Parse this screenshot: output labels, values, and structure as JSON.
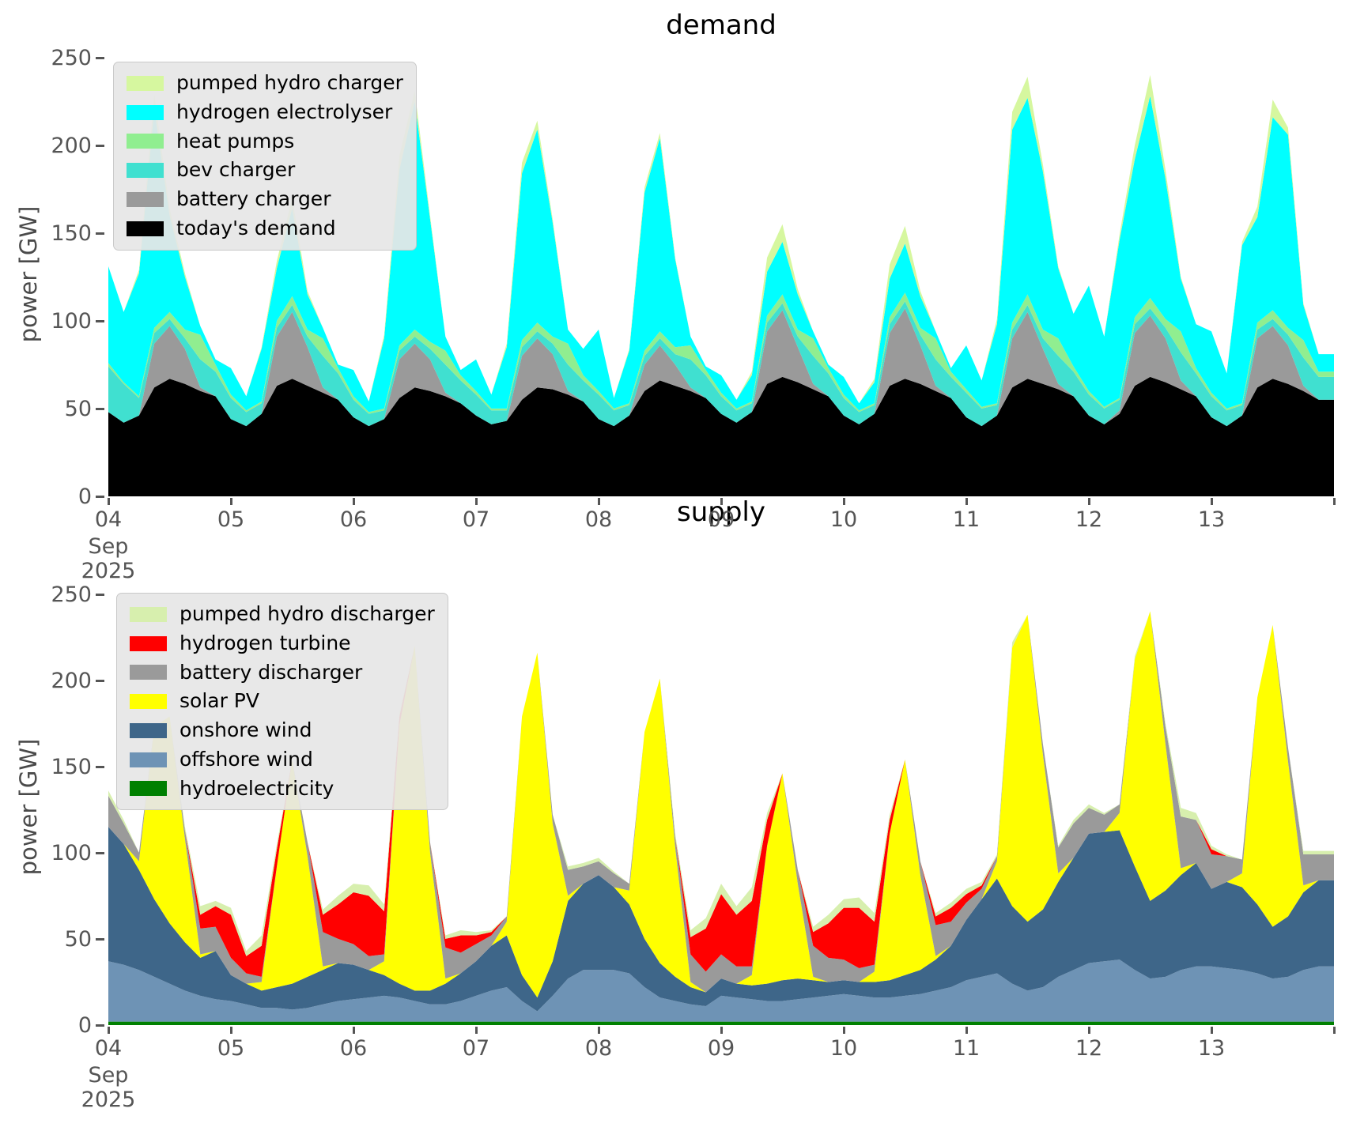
{
  "chart_data": [
    {
      "id": "demand",
      "type": "area",
      "title": "demand",
      "ylabel": "power [GW]",
      "legend_position": "upper left",
      "grid": false,
      "x_axis": {
        "month": "Sep",
        "year": "2025",
        "tick_labels": [
          "04",
          "05",
          "06",
          "07",
          "08",
          "09",
          "10",
          "11",
          "12",
          "13"
        ],
        "days": 10,
        "samples_per_day": 8
      },
      "y_axis": {
        "ticks": [
          0,
          50,
          100,
          150,
          200,
          250
        ],
        "max": 253,
        "unit": "GW"
      },
      "series": [
        {
          "name": "today's demand",
          "color": "#000000",
          "values": [
            48,
            42,
            46,
            62,
            67,
            64,
            60,
            57,
            44,
            40,
            47,
            63,
            67,
            63,
            59,
            55,
            45,
            40,
            44,
            56,
            62,
            60,
            57,
            53,
            46,
            41,
            43,
            55,
            62,
            61,
            58,
            54,
            44,
            40,
            46,
            60,
            66,
            63,
            60,
            56,
            47,
            42,
            48,
            64,
            68,
            65,
            61,
            57,
            46,
            41,
            47,
            63,
            67,
            64,
            60,
            56,
            45,
            40,
            46,
            62,
            67,
            64,
            61,
            57,
            46,
            41,
            47,
            63,
            68,
            65,
            61,
            57,
            45,
            40,
            46,
            62,
            67,
            64,
            60,
            55
          ]
        },
        {
          "name": "battery charger",
          "color": "#9a9a9a",
          "values": [
            0,
            0,
            0,
            25,
            30,
            20,
            2,
            0,
            0,
            0,
            0,
            28,
            38,
            22,
            3,
            0,
            0,
            0,
            0,
            22,
            25,
            18,
            2,
            0,
            0,
            0,
            0,
            25,
            28,
            20,
            2,
            0,
            0,
            0,
            0,
            15,
            20,
            12,
            2,
            0,
            0,
            0,
            0,
            30,
            38,
            20,
            3,
            0,
            0,
            0,
            0,
            30,
            40,
            22,
            3,
            0,
            0,
            0,
            0,
            28,
            38,
            20,
            3,
            0,
            0,
            0,
            2,
            30,
            35,
            25,
            5,
            0,
            0,
            0,
            0,
            28,
            30,
            22,
            3,
            0
          ]
        },
        {
          "name": "bev charger",
          "color": "#40e0d0",
          "values": [
            26,
            22,
            10,
            6,
            4,
            6,
            16,
            14,
            12,
            8,
            6,
            5,
            4,
            6,
            18,
            15,
            10,
            7,
            5,
            5,
            4,
            6,
            16,
            13,
            12,
            8,
            6,
            5,
            4,
            6,
            15,
            12,
            14,
            9,
            6,
            5,
            4,
            6,
            16,
            13,
            10,
            7,
            5,
            5,
            4,
            6,
            16,
            13,
            10,
            7,
            5,
            5,
            4,
            6,
            15,
            12,
            14,
            10,
            6,
            5,
            4,
            6,
            16,
            14,
            12,
            9,
            6,
            5,
            4,
            6,
            16,
            13,
            12,
            9,
            6,
            5,
            4,
            6,
            16,
            13
          ]
        },
        {
          "name": "heat pumps",
          "color": "#90ee90",
          "values": [
            2,
            1,
            1,
            3,
            4,
            5,
            14,
            4,
            2,
            1,
            1,
            4,
            5,
            4,
            10,
            3,
            2,
            1,
            1,
            3,
            4,
            4,
            8,
            3,
            2,
            1,
            1,
            4,
            5,
            4,
            12,
            3,
            2,
            1,
            1,
            3,
            4,
            4,
            8,
            3,
            2,
            1,
            1,
            4,
            5,
            4,
            10,
            3,
            2,
            1,
            1,
            4,
            5,
            4,
            12,
            3,
            2,
            1,
            1,
            4,
            6,
            5,
            10,
            3,
            2,
            1,
            1,
            4,
            6,
            5,
            12,
            3,
            2,
            1,
            1,
            4,
            5,
            4,
            10,
            3
          ]
        },
        {
          "name": "hydrogen electrolyser",
          "color": "#00ffff",
          "values": [
            55,
            40,
            70,
            125,
            55,
            30,
            5,
            3,
            15,
            8,
            30,
            30,
            50,
            20,
            6,
            2,
            15,
            6,
            40,
            100,
            130,
            70,
            8,
            3,
            18,
            8,
            35,
            95,
            110,
            65,
            8,
            15,
            35,
            6,
            30,
            90,
            110,
            50,
            5,
            2,
            10,
            5,
            15,
            25,
            30,
            20,
            4,
            2,
            10,
            4,
            12,
            22,
            28,
            18,
            4,
            2,
            25,
            15,
            45,
            110,
            112,
            90,
            40,
            30,
            60,
            40,
            90,
            90,
            115,
            80,
            30,
            25,
            35,
            20,
            90,
            60,
            110,
            110,
            20,
            10
          ]
        },
        {
          "name": "pumped hydro charger",
          "color": "#d6f79f",
          "values": [
            0,
            0,
            2,
            8,
            4,
            2,
            0,
            0,
            0,
            0,
            1,
            4,
            6,
            2,
            0,
            0,
            0,
            0,
            2,
            8,
            6,
            2,
            0,
            0,
            0,
            0,
            2,
            6,
            5,
            2,
            0,
            0,
            0,
            0,
            1,
            3,
            3,
            1,
            0,
            0,
            0,
            0,
            2,
            8,
            10,
            3,
            0,
            0,
            0,
            0,
            2,
            8,
            10,
            3,
            0,
            0,
            0,
            0,
            3,
            10,
            12,
            4,
            1,
            0,
            0,
            0,
            3,
            8,
            12,
            5,
            1,
            0,
            0,
            0,
            2,
            6,
            10,
            4,
            1,
            0
          ]
        }
      ]
    },
    {
      "id": "supply",
      "type": "area",
      "title": "supply",
      "ylabel": "power [GW]",
      "legend_position": "upper left",
      "grid": false,
      "x_axis": {
        "month": "Sep",
        "year": "2025",
        "tick_labels": [
          "04",
          "05",
          "06",
          "07",
          "08",
          "09",
          "10",
          "11",
          "12",
          "13"
        ],
        "days": 10,
        "samples_per_day": 8
      },
      "y_axis": {
        "ticks": [
          0,
          50,
          100,
          150,
          200,
          250
        ],
        "max": 253,
        "unit": "GW"
      },
      "series": [
        {
          "name": "hydroelectricity",
          "color": "#008000",
          "values": [
            2,
            2,
            2,
            2,
            2,
            2,
            2,
            2,
            2,
            2,
            2,
            2,
            2,
            2,
            2,
            2,
            2,
            2,
            2,
            2,
            2,
            2,
            2,
            2,
            2,
            2,
            2,
            2,
            2,
            2,
            2,
            2,
            2,
            2,
            2,
            2,
            2,
            2,
            2,
            2,
            2,
            2,
            2,
            2,
            2,
            2,
            2,
            2,
            2,
            2,
            2,
            2,
            2,
            2,
            2,
            2,
            2,
            2,
            2,
            2,
            2,
            2,
            2,
            2,
            2,
            2,
            2,
            2,
            2,
            2,
            2,
            2,
            2,
            2,
            2,
            2,
            2,
            2,
            2,
            2
          ]
        },
        {
          "name": "offshore wind",
          "color": "#6e93b5",
          "values": [
            35,
            33,
            30,
            26,
            22,
            18,
            15,
            13,
            12,
            10,
            8,
            8,
            7,
            8,
            10,
            12,
            13,
            14,
            15,
            14,
            12,
            10,
            10,
            12,
            15,
            18,
            20,
            12,
            6,
            15,
            25,
            30,
            30,
            30,
            28,
            20,
            14,
            12,
            10,
            9,
            15,
            14,
            13,
            12,
            12,
            13,
            14,
            15,
            16,
            15,
            14,
            14,
            15,
            16,
            18,
            20,
            24,
            26,
            28,
            22,
            18,
            20,
            26,
            30,
            34,
            35,
            36,
            30,
            25,
            26,
            30,
            32,
            32,
            31,
            30,
            28,
            25,
            26,
            30,
            32
          ]
        },
        {
          "name": "onshore wind",
          "color": "#3e6689",
          "values": [
            78,
            70,
            58,
            45,
            35,
            28,
            22,
            28,
            15,
            12,
            10,
            12,
            15,
            18,
            20,
            22,
            20,
            16,
            12,
            8,
            6,
            8,
            12,
            16,
            20,
            26,
            30,
            15,
            8,
            20,
            45,
            50,
            55,
            48,
            40,
            28,
            20,
            14,
            10,
            8,
            10,
            8,
            8,
            10,
            12,
            12,
            10,
            8,
            8,
            8,
            9,
            10,
            12,
            14,
            18,
            24,
            35,
            45,
            55,
            45,
            40,
            45,
            55,
            65,
            75,
            75,
            75,
            60,
            45,
            50,
            55,
            60,
            45,
            50,
            48,
            40,
            30,
            35,
            45,
            50
          ]
        },
        {
          "name": "solar PV",
          "color": "#ffff00",
          "values": [
            0,
            0,
            5,
            100,
            120,
            60,
            2,
            0,
            0,
            0,
            5,
            70,
            130,
            70,
            2,
            0,
            0,
            0,
            8,
            150,
            200,
            80,
            3,
            0,
            0,
            0,
            8,
            150,
            200,
            80,
            3,
            0,
            0,
            0,
            8,
            120,
            165,
            75,
            3,
            0,
            0,
            0,
            6,
            80,
            120,
            55,
            2,
            0,
            0,
            0,
            6,
            85,
            125,
            55,
            2,
            0,
            0,
            0,
            10,
            150,
            178,
            90,
            5,
            0,
            0,
            0,
            10,
            120,
            168,
            85,
            4,
            0,
            0,
            0,
            8,
            120,
            175,
            90,
            4,
            0
          ]
        },
        {
          "name": "battery discharger",
          "color": "#9a9a9a",
          "values": [
            18,
            12,
            5,
            0,
            0,
            5,
            15,
            14,
            10,
            6,
            3,
            0,
            0,
            8,
            20,
            14,
            12,
            8,
            4,
            0,
            0,
            6,
            18,
            12,
            10,
            6,
            3,
            0,
            0,
            5,
            15,
            10,
            8,
            8,
            4,
            0,
            0,
            6,
            16,
            12,
            14,
            10,
            5,
            0,
            0,
            8,
            18,
            14,
            12,
            8,
            4,
            0,
            0,
            8,
            18,
            14,
            10,
            6,
            3,
            0,
            0,
            6,
            15,
            20,
            15,
            10,
            5,
            0,
            0,
            10,
            30,
            25,
            20,
            15,
            8,
            0,
            0,
            8,
            18,
            15
          ]
        },
        {
          "name": "hydrogen turbine",
          "color": "#ff0000",
          "values": [
            0,
            0,
            0,
            0,
            0,
            0,
            8,
            12,
            25,
            10,
            18,
            10,
            0,
            0,
            10,
            20,
            30,
            35,
            25,
            5,
            0,
            0,
            5,
            10,
            5,
            2,
            0,
            0,
            0,
            0,
            0,
            0,
            0,
            0,
            0,
            0,
            0,
            0,
            10,
            25,
            35,
            30,
            38,
            15,
            0,
            0,
            8,
            20,
            30,
            35,
            25,
            8,
            0,
            0,
            5,
            8,
            5,
            2,
            0,
            0,
            0,
            0,
            0,
            0,
            0,
            0,
            0,
            0,
            0,
            0,
            0,
            0,
            3,
            0,
            0,
            0,
            0,
            0,
            0,
            0
          ]
        },
        {
          "name": "pumped hydro discharger",
          "color": "#d7efae",
          "values": [
            3,
            2,
            0,
            0,
            0,
            2,
            5,
            3,
            4,
            3,
            6,
            3,
            0,
            0,
            3,
            5,
            5,
            6,
            4,
            2,
            0,
            0,
            2,
            3,
            2,
            1,
            0,
            0,
            0,
            0,
            2,
            2,
            2,
            1,
            0,
            0,
            0,
            2,
            4,
            6,
            6,
            5,
            8,
            4,
            0,
            0,
            3,
            5,
            5,
            6,
            5,
            3,
            0,
            0,
            2,
            3,
            3,
            2,
            1,
            3,
            0,
            0,
            1,
            2,
            2,
            1,
            0,
            2,
            0,
            2,
            5,
            4,
            2,
            1,
            0,
            0,
            0,
            0,
            2,
            2
          ]
        }
      ]
    }
  ]
}
